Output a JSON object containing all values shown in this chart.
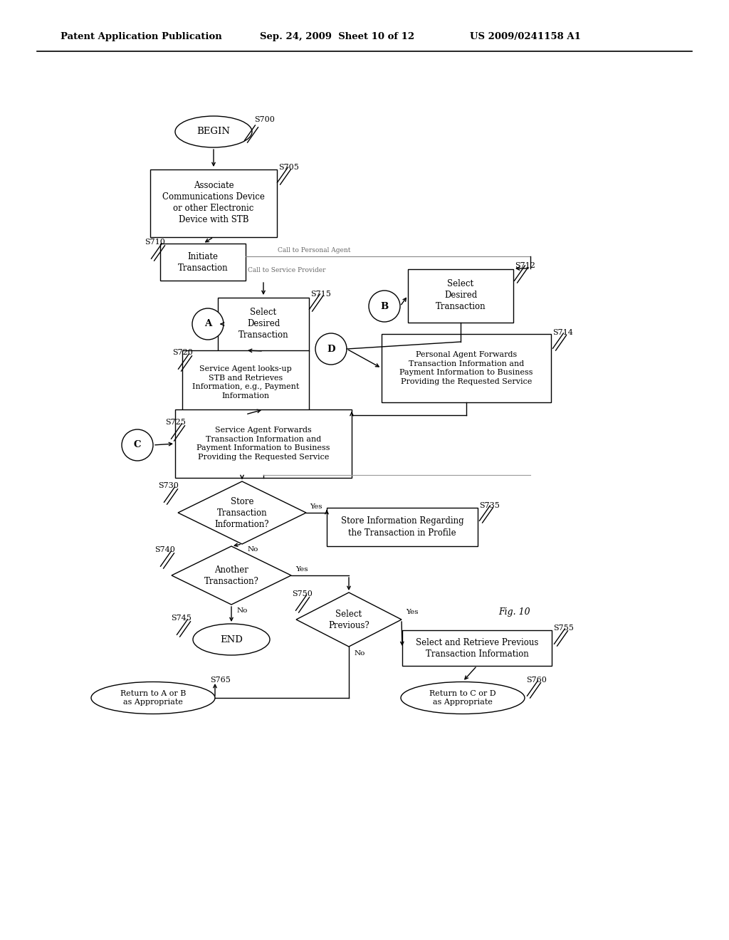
{
  "bg_color": "#ffffff",
  "header_left": "Patent Application Publication",
  "header_mid": "Sep. 24, 2009  Sheet 10 of 12",
  "header_right": "US 2009/0241158 A1",
  "fig_label": "Fig. 10"
}
